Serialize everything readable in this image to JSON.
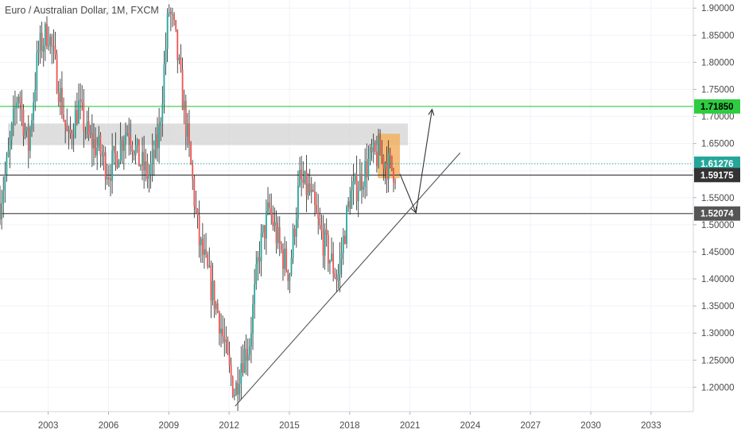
{
  "chart_data": {
    "type": "candlestick",
    "title": "Euro / Australian Dollar, 1M, FXCM",
    "x_tick_labels": [
      "2003",
      "2006",
      "2009",
      "2012",
      "2015",
      "2018",
      "2021",
      "2024",
      "2027",
      "2030",
      "2033"
    ],
    "x_tick_years": [
      2003,
      2006,
      2009,
      2012,
      2015,
      2018,
      2021,
      2024,
      2027,
      2030,
      2033
    ],
    "x_range": [
      2000.6,
      2035.1
    ],
    "y_tick_labels": [
      "1.90000",
      "1.85000",
      "1.80000",
      "1.75000",
      "1.70000",
      "1.65000",
      "1.60000",
      "1.55000",
      "1.50000",
      "1.45000",
      "1.40000",
      "1.35000",
      "1.30000",
      "1.25000",
      "1.20000"
    ],
    "y_ticks": [
      1.9,
      1.85,
      1.8,
      1.75,
      1.7,
      1.65,
      1.6,
      1.55,
      1.5,
      1.45,
      1.4,
      1.35,
      1.3,
      1.25,
      1.2
    ],
    "y_range": [
      1.155,
      1.915
    ],
    "grid": true,
    "colors": {
      "up": "#26a69a",
      "down": "#ef5350",
      "grid": "#f0f3fa",
      "axis_text": "#4a4a4a",
      "resistance": "#2ecc40",
      "support": "#555555",
      "current": "#26a69a"
    },
    "price_labels": [
      {
        "text": "1.71850",
        "value": 1.7185,
        "bg": "#2ecc40",
        "fg": "#000000"
      },
      {
        "text": "1.61276",
        "value": 1.61276,
        "bg": "#26a69a",
        "fg": "#ffffff"
      },
      {
        "text": "1.59175",
        "value": 1.59175,
        "bg": "#333333",
        "fg": "#ffffff"
      },
      {
        "text": "1.52074",
        "value": 1.52074,
        "bg": "#555555",
        "fg": "#ffffff"
      }
    ],
    "horizontal_lines": [
      {
        "value": 1.7185,
        "color": "#2ecc40",
        "style": "solid"
      },
      {
        "value": 1.61276,
        "color": "#26a69a",
        "style": "dotted"
      },
      {
        "value": 1.59175,
        "color": "#333333",
        "style": "solid"
      },
      {
        "value": 1.52074,
        "color": "#555555",
        "style": "solid"
      }
    ],
    "zones": [
      {
        "x0": 2001.0,
        "x1": 2020.9,
        "y0": 1.647,
        "y1": 1.687,
        "fill": "#d3d3d3"
      },
      {
        "x0": 2019.4,
        "x1": 2020.5,
        "y0": 1.586,
        "y1": 1.668,
        "fill": "#f5b063"
      }
    ],
    "trendline": {
      "x0": 2012.3,
      "y0": 1.165,
      "x1": 2023.5,
      "y1": 1.633
    },
    "projection_path": [
      {
        "x": 2020.5,
        "y": 1.594
      },
      {
        "x": 2021.3,
        "y": 1.522
      },
      {
        "x": 2022.1,
        "y": 1.713
      }
    ],
    "price_path": [
      [
        2000.6,
        1.54
      ],
      [
        2001.0,
        1.62
      ],
      [
        2001.5,
        1.75
      ],
      [
        2002.0,
        1.64
      ],
      [
        2002.5,
        1.82
      ],
      [
        2003.0,
        1.86
      ],
      [
        2003.5,
        1.76
      ],
      [
        2004.0,
        1.65
      ],
      [
        2004.5,
        1.72
      ],
      [
        2005.0,
        1.66
      ],
      [
        2005.5,
        1.64
      ],
      [
        2006.0,
        1.6
      ],
      [
        2006.3,
        1.62
      ],
      [
        2006.7,
        1.66
      ],
      [
        2007.0,
        1.68
      ],
      [
        2007.5,
        1.62
      ],
      [
        2008.0,
        1.59
      ],
      [
        2008.5,
        1.66
      ],
      [
        2009.0,
        1.9
      ],
      [
        2009.3,
        1.85
      ],
      [
        2009.6,
        1.76
      ],
      [
        2010.0,
        1.64
      ],
      [
        2010.5,
        1.47
      ],
      [
        2011.0,
        1.4
      ],
      [
        2011.5,
        1.33
      ],
      [
        2012.0,
        1.23
      ],
      [
        2012.3,
        1.19
      ],
      [
        2012.6,
        1.25
      ],
      [
        2013.0,
        1.28
      ],
      [
        2013.5,
        1.45
      ],
      [
        2014.0,
        1.53
      ],
      [
        2014.5,
        1.46
      ],
      [
        2015.0,
        1.41
      ],
      [
        2015.5,
        1.58
      ],
      [
        2016.0,
        1.56
      ],
      [
        2016.5,
        1.49
      ],
      [
        2017.0,
        1.44
      ],
      [
        2017.4,
        1.4
      ],
      [
        2018.0,
        1.55
      ],
      [
        2018.5,
        1.58
      ],
      [
        2019.0,
        1.62
      ],
      [
        2019.5,
        1.63
      ],
      [
        2019.9,
        1.61
      ],
      [
        2020.3,
        1.6
      ]
    ]
  }
}
